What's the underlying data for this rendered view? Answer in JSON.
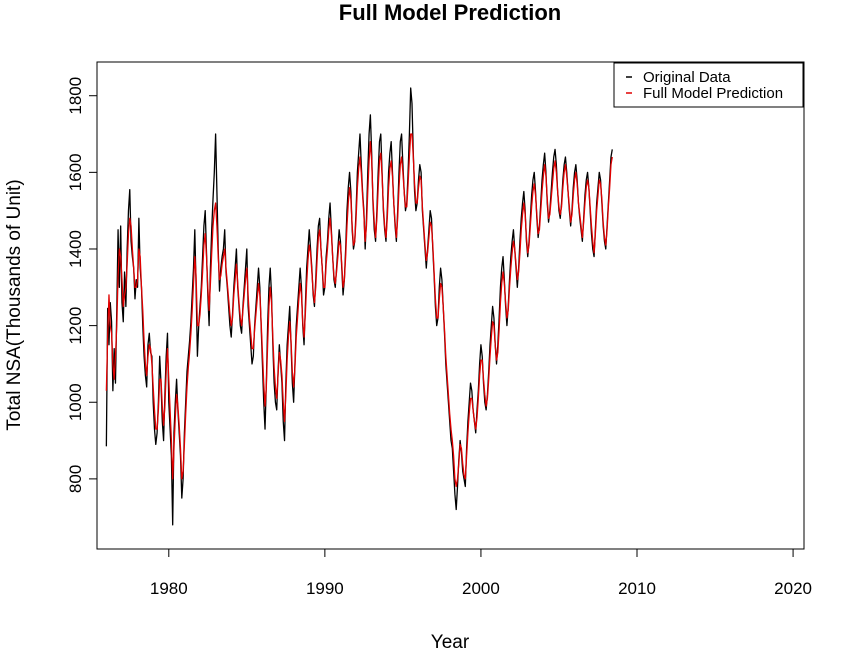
{
  "chart_data": {
    "type": "line",
    "title": "Full Model Prediction",
    "xlabel": "Year",
    "ylabel": "Total NSA(Thousands of Unit)",
    "xlim": [
      1975.4,
      2020.7
    ],
    "ylim": [
      617,
      1888
    ],
    "x_ticks": [
      1980,
      1990,
      2000,
      2010,
      2020
    ],
    "y_ticks": [
      800,
      1000,
      1200,
      1400,
      1600,
      1800
    ],
    "grid": false,
    "legend_position": "top-right",
    "x_start": 1976,
    "x_step": 0.08333,
    "series": [
      {
        "name": "Original Data",
        "color": "#000000",
        "values": [
          885,
          1245,
          1150,
          1260,
          1210,
          1030,
          1140,
          1050,
          1240,
          1450,
          1300,
          1460,
          1260,
          1210,
          1340,
          1250,
          1400,
          1500,
          1555,
          1420,
          1380,
          1350,
          1270,
          1320,
          1300,
          1480,
          1350,
          1300,
          1200,
          1120,
          1070,
          1040,
          1150,
          1180,
          1130,
          1120,
          1000,
          930,
          890,
          920,
          1000,
          1120,
          1050,
          950,
          900,
          1020,
          1120,
          1180,
          1000,
          930,
          860,
          680,
          920,
          1000,
          1060,
          980,
          920,
          860,
          750,
          800,
          920,
          1000,
          1080,
          1120,
          1160,
          1210,
          1280,
          1350,
          1450,
          1300,
          1120,
          1200,
          1250,
          1300,
          1380,
          1460,
          1500,
          1390,
          1280,
          1200,
          1350,
          1450,
          1530,
          1600,
          1700,
          1550,
          1400,
          1290,
          1350,
          1380,
          1400,
          1450,
          1340,
          1300,
          1250,
          1200,
          1170,
          1230,
          1300,
          1350,
          1400,
          1300,
          1250,
          1200,
          1180,
          1250,
          1300,
          1350,
          1400,
          1250,
          1200,
          1150,
          1100,
          1120,
          1200,
          1250,
          1300,
          1350,
          1300,
          1200,
          1100,
          1000,
          930,
          1050,
          1200,
          1300,
          1350,
          1280,
          1150,
          1050,
          1000,
          980,
          1080,
          1150,
          1100,
          1050,
          950,
          900,
          1050,
          1150,
          1200,
          1250,
          1150,
          1050,
          1000,
          1100,
          1200,
          1250,
          1300,
          1350,
          1300,
          1200,
          1150,
          1250,
          1350,
          1400,
          1450,
          1400,
          1350,
          1280,
          1250,
          1320,
          1400,
          1460,
          1480,
          1400,
          1350,
          1280,
          1300,
          1380,
          1420,
          1480,
          1520,
          1450,
          1380,
          1320,
          1300,
          1350,
          1400,
          1450,
          1420,
          1350,
          1280,
          1320,
          1400,
          1500,
          1560,
          1600,
          1550,
          1450,
          1400,
          1420,
          1500,
          1600,
          1650,
          1700,
          1620,
          1550,
          1500,
          1400,
          1480,
          1600,
          1700,
          1750,
          1650,
          1520,
          1450,
          1420,
          1500,
          1600,
          1680,
          1700,
          1600,
          1500,
          1450,
          1420,
          1500,
          1600,
          1650,
          1680,
          1600,
          1520,
          1460,
          1420,
          1500,
          1600,
          1680,
          1700,
          1620,
          1550,
          1500,
          1520,
          1600,
          1700,
          1820,
          1780,
          1650,
          1550,
          1500,
          1520,
          1580,
          1620,
          1600,
          1500,
          1450,
          1400,
          1350,
          1400,
          1450,
          1500,
          1480,
          1400,
          1330,
          1250,
          1200,
          1220,
          1300,
          1350,
          1320,
          1250,
          1180,
          1100,
          1050,
          1000,
          950,
          900,
          880,
          820,
          760,
          720,
          780,
          850,
          900,
          870,
          820,
          800,
          780,
          880,
          950,
          1000,
          1050,
          1030,
          980,
          950,
          920,
          980,
          1030,
          1100,
          1150,
          1120,
          1050,
          1000,
          980,
          1020,
          1080,
          1150,
          1200,
          1250,
          1220,
          1150,
          1100,
          1150,
          1220,
          1300,
          1350,
          1380,
          1320,
          1250,
          1200,
          1250,
          1320,
          1380,
          1420,
          1450,
          1400,
          1350,
          1300,
          1350,
          1420,
          1480,
          1520,
          1550,
          1500,
          1420,
          1380,
          1420,
          1480,
          1540,
          1580,
          1600,
          1550,
          1480,
          1430,
          1460,
          1520,
          1580,
          1620,
          1650,
          1600,
          1520,
          1470,
          1500,
          1550,
          1600,
          1640,
          1660,
          1620,
          1550,
          1500,
          1480,
          1520,
          1580,
          1620,
          1640,
          1600,
          1550,
          1500,
          1460,
          1500,
          1560,
          1600,
          1620,
          1580,
          1520,
          1480,
          1450,
          1420,
          1480,
          1540,
          1580,
          1600,
          1560,
          1500,
          1440,
          1400,
          1380,
          1450,
          1520,
          1560,
          1600,
          1580,
          1520,
          1460,
          1420,
          1400,
          1460,
          1520,
          1580,
          1640,
          1660
        ]
      },
      {
        "name": "Full Model Prediction",
        "color": "#e00000",
        "values": [
          1030,
          1170,
          1280,
          1200,
          1180,
          1100,
          1060,
          1120,
          1200,
          1330,
          1400,
          1380,
          1320,
          1250,
          1280,
          1300,
          1360,
          1440,
          1480,
          1460,
          1400,
          1350,
          1300,
          1300,
          1320,
          1400,
          1380,
          1300,
          1240,
          1160,
          1100,
          1070,
          1120,
          1150,
          1140,
          1100,
          1040,
          980,
          930,
          930,
          980,
          1060,
          1060,
          990,
          940,
          990,
          1080,
          1140,
          1060,
          980,
          900,
          800,
          880,
          960,
          1020,
          990,
          940,
          880,
          800,
          820,
          890,
          970,
          1040,
          1090,
          1130,
          1180,
          1240,
          1310,
          1380,
          1330,
          1200,
          1200,
          1230,
          1280,
          1340,
          1410,
          1440,
          1380,
          1300,
          1240,
          1310,
          1390,
          1460,
          1500,
          1520,
          1460,
          1380,
          1320,
          1330,
          1360,
          1380,
          1400,
          1350,
          1310,
          1270,
          1230,
          1200,
          1220,
          1280,
          1320,
          1360,
          1310,
          1260,
          1220,
          1200,
          1240,
          1280,
          1320,
          1350,
          1280,
          1220,
          1180,
          1140,
          1140,
          1190,
          1230,
          1270,
          1310,
          1280,
          1210,
          1130,
          1050,
          990,
          1040,
          1150,
          1250,
          1300,
          1260,
          1170,
          1090,
          1040,
          1010,
          1070,
          1130,
          1110,
          1070,
          1000,
          950,
          1020,
          1110,
          1170,
          1210,
          1160,
          1080,
          1040,
          1090,
          1170,
          1220,
          1270,
          1310,
          1280,
          1210,
          1170,
          1230,
          1310,
          1370,
          1410,
          1390,
          1340,
          1290,
          1260,
          1300,
          1370,
          1430,
          1450,
          1400,
          1350,
          1300,
          1300,
          1360,
          1400,
          1450,
          1480,
          1440,
          1380,
          1330,
          1310,
          1340,
          1380,
          1420,
          1410,
          1360,
          1300,
          1320,
          1380,
          1460,
          1520,
          1560,
          1530,
          1460,
          1410,
          1420,
          1480,
          1560,
          1610,
          1640,
          1600,
          1540,
          1490,
          1420,
          1460,
          1550,
          1630,
          1680,
          1630,
          1530,
          1470,
          1430,
          1480,
          1560,
          1630,
          1650,
          1590,
          1510,
          1460,
          1430,
          1480,
          1560,
          1610,
          1630,
          1590,
          1520,
          1470,
          1430,
          1480,
          1560,
          1620,
          1640,
          1600,
          1550,
          1510,
          1510,
          1570,
          1640,
          1700,
          1700,
          1640,
          1570,
          1520,
          1520,
          1560,
          1590,
          1580,
          1510,
          1460,
          1410,
          1370,
          1390,
          1430,
          1470,
          1460,
          1410,
          1340,
          1270,
          1220,
          1220,
          1270,
          1310,
          1300,
          1250,
          1190,
          1120,
          1070,
          1020,
          970,
          930,
          900,
          860,
          800,
          780,
          800,
          840,
          890,
          880,
          840,
          810,
          800,
          860,
          920,
          970,
          1010,
          1010,
          980,
          950,
          930,
          960,
          1010,
          1070,
          1110,
          1110,
          1060,
          1020,
          990,
          1010,
          1060,
          1120,
          1170,
          1210,
          1200,
          1150,
          1110,
          1130,
          1190,
          1260,
          1310,
          1340,
          1310,
          1260,
          1220,
          1240,
          1300,
          1350,
          1390,
          1420,
          1400,
          1360,
          1320,
          1340,
          1390,
          1450,
          1490,
          1520,
          1490,
          1430,
          1390,
          1410,
          1460,
          1510,
          1550,
          1570,
          1540,
          1490,
          1440,
          1450,
          1500,
          1550,
          1590,
          1620,
          1590,
          1530,
          1480,
          1490,
          1530,
          1570,
          1610,
          1630,
          1600,
          1550,
          1510,
          1490,
          1510,
          1560,
          1600,
          1620,
          1590,
          1550,
          1510,
          1470,
          1490,
          1540,
          1580,
          1600,
          1570,
          1520,
          1490,
          1460,
          1430,
          1470,
          1520,
          1560,
          1580,
          1560,
          1510,
          1460,
          1420,
          1390,
          1440,
          1500,
          1540,
          1580,
          1570,
          1530,
          1470,
          1430,
          1410,
          1450,
          1510,
          1560,
          1620,
          1640
        ]
      }
    ]
  }
}
